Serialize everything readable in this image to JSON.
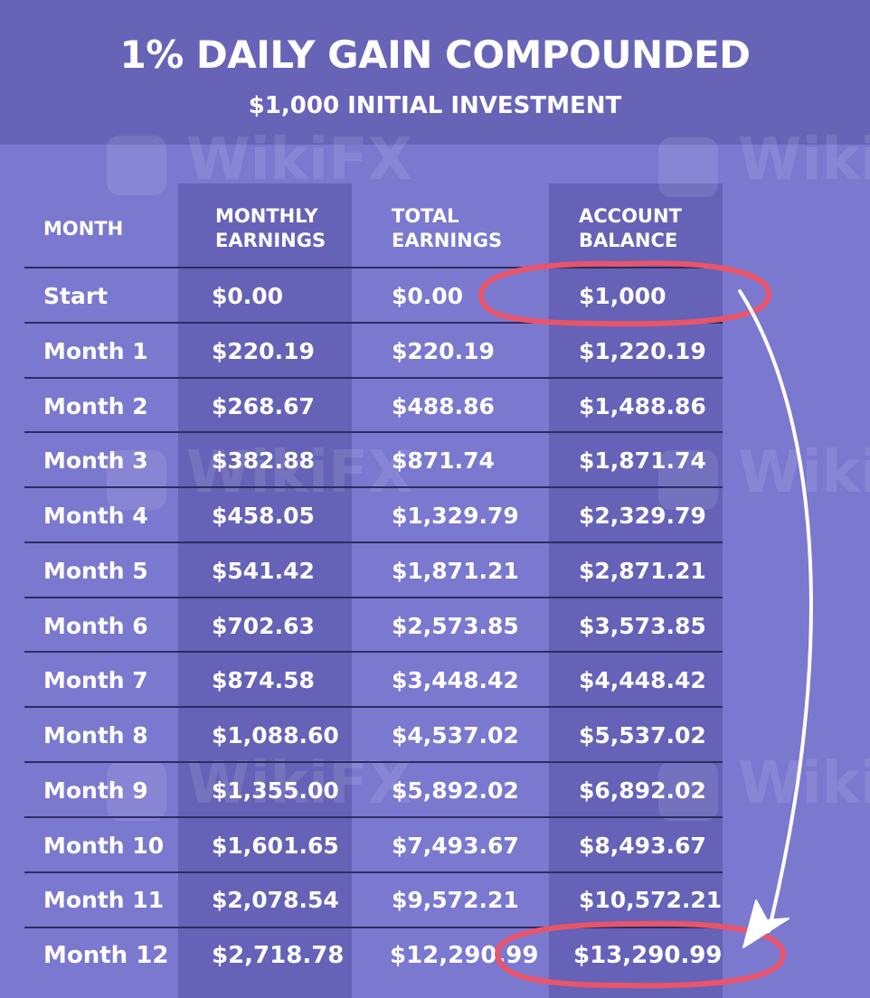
{
  "header": {
    "title": "1% DAILY GAIN COMPOUNDED",
    "subtitle": "$1,000 INITIAL INVESTMENT"
  },
  "watermark": {
    "text": "WikiFX"
  },
  "colors": {
    "background": "#7b78d0",
    "header_band": "#6764b8",
    "column_band": "#6562b7",
    "highlight_circle": "#e8546a",
    "arrow": "#ffffff"
  },
  "table": {
    "columns": [
      {
        "key": "month",
        "label": "MONTH"
      },
      {
        "key": "monthly",
        "label": "MONTHLY\nEARNINGS"
      },
      {
        "key": "total",
        "label": "TOTAL\nEARNINGS"
      },
      {
        "key": "balance",
        "label": "ACCOUNT\nBALANCE"
      }
    ],
    "rows": [
      {
        "month": "Start",
        "monthly": "$0.00",
        "total": "$0.00",
        "balance": "$1,000"
      },
      {
        "month": "Month 1",
        "monthly": "$220.19",
        "total": "$220.19",
        "balance": "$1,220.19"
      },
      {
        "month": "Month 2",
        "monthly": "$268.67",
        "total": "$488.86",
        "balance": "$1,488.86"
      },
      {
        "month": "Month 3",
        "monthly": "$382.88",
        "total": "$871.74",
        "balance": "$1,871.74"
      },
      {
        "month": "Month 4",
        "monthly": "$458.05",
        "total": "$1,329.79",
        "balance": "$2,329.79"
      },
      {
        "month": "Month 5",
        "monthly": "$541.42",
        "total": "$1,871.21",
        "balance": "$2,871.21"
      },
      {
        "month": "Month 6",
        "monthly": "$702.63",
        "total": "$2,573.85",
        "balance": "$3,573.85"
      },
      {
        "month": "Month 7",
        "monthly": "$874.58",
        "total": "$3,448.42",
        "balance": "$4,448.42"
      },
      {
        "month": "Month 8",
        "monthly": "$1,088.60",
        "total": "$4,537.02",
        "balance": "$5,537.02"
      },
      {
        "month": "Month 9",
        "monthly": "$1,355.00",
        "total": "$5,892.02",
        "balance": "$6,892.02"
      },
      {
        "month": "Month 10",
        "monthly": "$1,601.65",
        "total": "$7,493.67",
        "balance": "$8,493.67"
      },
      {
        "month": "Month 11",
        "monthly": "$2,078.54",
        "total": "$9,572.21",
        "balance": "$10,572.21"
      },
      {
        "month": "Month 12",
        "monthly": "$2,718.78",
        "total": "$12,290.99",
        "balance": "$13,290.99"
      }
    ]
  }
}
